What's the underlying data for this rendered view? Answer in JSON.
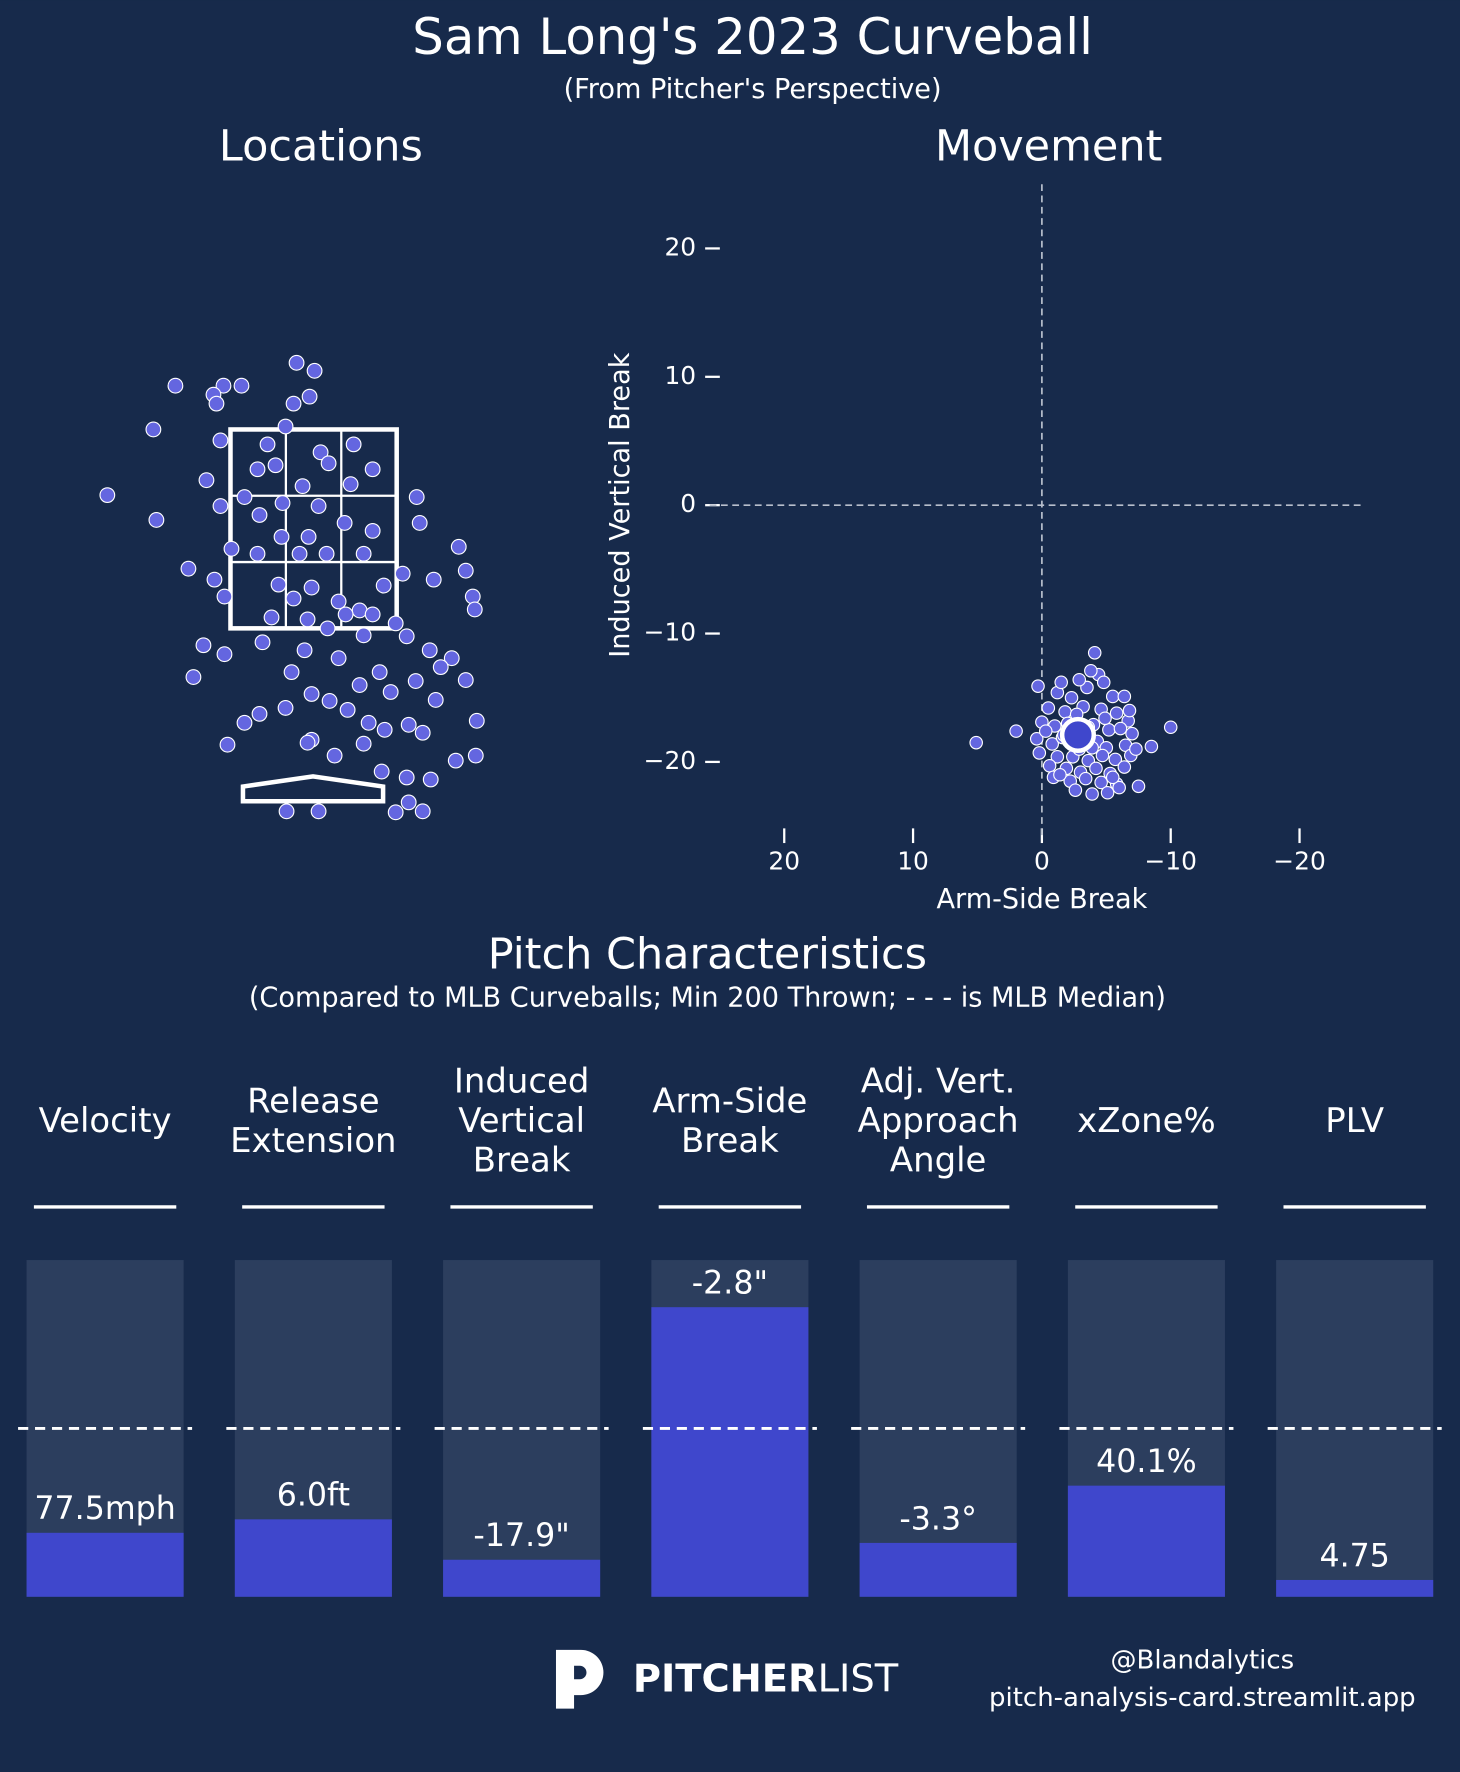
{
  "header": {
    "title": "Sam Long's 2023 Curveball",
    "subtitle": "(From Pitcher's Perspective)"
  },
  "chart_data": [
    {
      "type": "location",
      "title": "Locations",
      "color": "#6466e0",
      "xlim": [
        -2.5,
        2.5
      ],
      "ylim": [
        -0.5,
        4.5
      ],
      "zone": {
        "x": [
          -0.83,
          0.83
        ],
        "z": [
          1.5,
          3.5
        ]
      },
      "x": [
        -0.17,
        0.01,
        -1.38,
        -0.9,
        -0.72,
        -1.0,
        -0.04,
        -0.97,
        -0.2,
        -1.6,
        -0.28,
        -0.93,
        -0.46,
        0.07,
        0.4,
        -0.56,
        -0.38,
        0.15,
        0.59,
        -1.07,
        -0.11,
        0.37,
        -2.06,
        -0.69,
        -0.31,
        1.03,
        -0.93,
        0.05,
        -0.54,
        -1.57,
        1.06,
        0.31,
        0.59,
        -0.05,
        -0.32,
        1.45,
        -0.82,
        -0.56,
        -0.14,
        0.13,
        0.5,
        -1.25,
        1.52,
        0.89,
        -0.99,
        -0.35,
        -0.02,
        0.7,
        1.2,
        1.59,
        -0.89,
        -0.2,
        0.25,
        0.46,
        1.61,
        -0.42,
        -0.06,
        0.32,
        0.59,
        0.82,
        0.14,
        0.5,
        -0.51,
        0.93,
        -1.1,
        1.16,
        -0.09,
        -0.89,
        0.25,
        1.38,
        -0.22,
        0.66,
        1.27,
        -1.2,
        1.52,
        0.46,
        1.02,
        -0.02,
        0.77,
        0.16,
        1.22,
        -0.54,
        -0.28,
        0.34,
        0.55,
        0.95,
        1.63,
        -0.69,
        -0.02,
        0.71,
        1.09,
        -0.86,
        -0.06,
        0.5,
        0.21,
        1.42,
        1.62,
        0.68,
        0.93,
        1.17,
        -0.27,
        0.05,
        0.82,
        1.09,
        0.95
      ],
      "y": [
        4.17,
        4.09,
        3.94,
        3.94,
        3.94,
        3.85,
        3.83,
        3.76,
        3.76,
        3.5,
        3.53,
        3.39,
        3.35,
        3.27,
        3.35,
        3.1,
        3.14,
        3.16,
        3.1,
        2.99,
        2.93,
        2.95,
        2.84,
        2.82,
        2.76,
        2.82,
        2.73,
        2.73,
        2.64,
        2.59,
        2.56,
        2.56,
        2.48,
        2.42,
        2.42,
        2.32,
        2.3,
        2.25,
        2.25,
        2.25,
        2.25,
        2.1,
        2.08,
        2.05,
        1.99,
        1.94,
        1.91,
        1.93,
        1.99,
        1.82,
        1.82,
        1.8,
        1.77,
        1.68,
        1.69,
        1.61,
        1.59,
        1.64,
        1.64,
        1.55,
        1.5,
        1.43,
        1.36,
        1.42,
        1.33,
        1.28,
        1.28,
        1.24,
        1.2,
        1.2,
        1.06,
        1.06,
        1.11,
        1.01,
        0.98,
        0.93,
        0.97,
        0.84,
        0.86,
        0.77,
        0.78,
        0.64,
        0.7,
        0.68,
        0.55,
        0.53,
        0.57,
        0.55,
        0.38,
        0.48,
        0.45,
        0.33,
        0.35,
        0.34,
        0.22,
        0.17,
        0.22,
        0.06,
        0.0,
        -0.02,
        -0.34,
        -0.34,
        -0.35,
        -0.34,
        -0.25
      ]
    },
    {
      "type": "scatter",
      "title": "Movement",
      "xlabel": "Arm-Side Break",
      "ylabel": "Induced Vertical Break",
      "color": "#6466e0",
      "xlim": [
        25,
        -25
      ],
      "ylim": [
        -25,
        25
      ],
      "xticks": [
        20,
        10,
        0,
        {
          "value": -10,
          "label": "−10"
        },
        {
          "value": -20,
          "label": "−20"
        }
      ],
      "yticks": [
        20,
        10,
        0,
        {
          "value": -10,
          "label": "−10"
        },
        {
          "value": -20,
          "label": "−20"
        }
      ],
      "zero_lines": true,
      "average": {
        "x": -2.8,
        "y": -17.9
      },
      "x": [
        5.1,
        -10.0,
        -4.1,
        -8.5,
        -7.5,
        2.0,
        0.3,
        -1.2,
        -2.3,
        -3.5,
        -4.4,
        -4.8,
        -5.5,
        -6.4,
        -0.5,
        -1.8,
        -3.2,
        -4.6,
        -5.8,
        -6.7,
        0.0,
        -1.0,
        -2.0,
        -4.0,
        -5.2,
        -6.1,
        -7.0,
        0.4,
        -0.8,
        -1.6,
        -4.3,
        -5.0,
        -6.5,
        0.2,
        -1.2,
        -2.4,
        -3.6,
        -4.7,
        -5.7,
        -6.9,
        -0.6,
        -1.9,
        -3.0,
        -4.2,
        -5.3,
        -6.4,
        -0.9,
        -2.2,
        -3.4,
        -4.6,
        -5.8,
        -2.6,
        -3.9,
        -5.1,
        -6.0,
        -2.9,
        -3.8,
        -1.5,
        -2.7,
        -3.6,
        -1.7,
        -4.9,
        -2.9,
        -3.9,
        -1.4,
        -5.5,
        -6.8,
        -0.3,
        -7.3
      ],
      "y": [
        -18.5,
        -17.3,
        -11.5,
        -18.8,
        -21.9,
        -17.6,
        -14.1,
        -14.6,
        -15.0,
        -14.2,
        -13.2,
        -13.8,
        -14.9,
        -14.9,
        -15.8,
        -16.1,
        -15.7,
        -15.9,
        -16.2,
        -16.8,
        -16.9,
        -17.2,
        -17.0,
        -17.1,
        -17.5,
        -17.4,
        -17.8,
        -18.2,
        -18.6,
        -18.1,
        -18.4,
        -18.9,
        -18.7,
        -19.3,
        -19.6,
        -19.6,
        -19.9,
        -19.5,
        -19.8,
        -19.5,
        -20.3,
        -20.5,
        -20.8,
        -20.5,
        -20.9,
        -20.4,
        -21.2,
        -21.5,
        -21.3,
        -21.6,
        -21.7,
        -22.2,
        -22.5,
        -22.4,
        -22.0,
        -13.6,
        -12.9,
        -13.8,
        -16.3,
        -17.3,
        -17.9,
        -16.6,
        -19.0,
        -18.9,
        -21.0,
        -21.2,
        -16.0,
        -17.6,
        -19.0
      ]
    },
    {
      "type": "bar",
      "title": "Pitch Characteristics",
      "subtitle": "(Compared to MLB Curveballs; Min 200 Thrown; - - - is MLB Median)",
      "color": "#3f47cc",
      "ylim": [
        0,
        100
      ],
      "median": 50,
      "categories": [
        [
          "Velocity"
        ],
        [
          "Release",
          "Extension"
        ],
        [
          "Induced",
          "Vertical",
          "Break"
        ],
        [
          "Arm-Side",
          "Break"
        ],
        [
          "Adj. Vert.",
          "Approach",
          "Angle"
        ],
        [
          "xZone%"
        ],
        [
          "PLV"
        ]
      ],
      "values": [
        19,
        23,
        11,
        86,
        16,
        33,
        5
      ],
      "stat_labels": [
        "77.5mph",
        "6.0ft",
        "-17.9\"",
        "-2.8\"",
        "-3.3°",
        "40.1%",
        "4.75"
      ]
    }
  ],
  "footer": {
    "brand_bold": "PITCHER",
    "brand_light": "LIST",
    "handle": "@Blandalytics",
    "site": "pitch-analysis-card.streamlit.app"
  }
}
